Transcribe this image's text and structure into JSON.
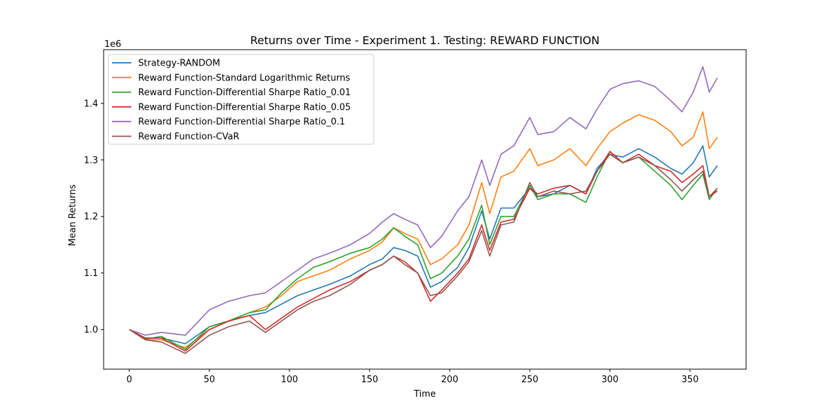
{
  "chart_data": {
    "type": "line",
    "title": "Returns over Time - Experiment 1. Testing: REWARD FUNCTION",
    "xlabel": "Time",
    "ylabel": "Mean Returns",
    "y_offset_label": "1e6",
    "xlim": [
      -16,
      385
    ],
    "ylim": [
      930000,
      1495000
    ],
    "xticks": [
      0,
      50,
      100,
      150,
      200,
      250,
      300,
      350
    ],
    "yticks": [
      1000000,
      1100000,
      1200000,
      1300000,
      1400000
    ],
    "ytick_labels": [
      "1.0",
      "1.1",
      "1.2",
      "1.3",
      "1.4"
    ],
    "grid": false,
    "legend_position": "top-left",
    "series": [
      {
        "name": "Strategy-RANDOM",
        "color": "#1f77b4",
        "points": [
          [
            0,
            1000000
          ],
          [
            10,
            985000
          ],
          [
            20,
            985000
          ],
          [
            35,
            975000
          ],
          [
            50,
            1005000
          ],
          [
            62,
            1015000
          ],
          [
            75,
            1025000
          ],
          [
            85,
            1030000
          ],
          [
            95,
            1045000
          ],
          [
            105,
            1060000
          ],
          [
            115,
            1070000
          ],
          [
            125,
            1080000
          ],
          [
            138,
            1095000
          ],
          [
            150,
            1115000
          ],
          [
            158,
            1125000
          ],
          [
            165,
            1145000
          ],
          [
            172,
            1140000
          ],
          [
            180,
            1130000
          ],
          [
            188,
            1075000
          ],
          [
            195,
            1085000
          ],
          [
            205,
            1110000
          ],
          [
            212,
            1145000
          ],
          [
            220,
            1210000
          ],
          [
            225,
            1160000
          ],
          [
            232,
            1215000
          ],
          [
            240,
            1215000
          ],
          [
            250,
            1250000
          ],
          [
            255,
            1235000
          ],
          [
            265,
            1240000
          ],
          [
            275,
            1255000
          ],
          [
            285,
            1240000
          ],
          [
            292,
            1285000
          ],
          [
            300,
            1310000
          ],
          [
            308,
            1305000
          ],
          [
            318,
            1320000
          ],
          [
            328,
            1305000
          ],
          [
            338,
            1285000
          ],
          [
            345,
            1275000
          ],
          [
            352,
            1295000
          ],
          [
            358,
            1325000
          ],
          [
            362,
            1270000
          ],
          [
            367,
            1290000
          ]
        ]
      },
      {
        "name": "Reward Function-Standard Logarithmic Returns",
        "color": "#ff7f0e",
        "points": [
          [
            0,
            1000000
          ],
          [
            10,
            982000
          ],
          [
            20,
            982000
          ],
          [
            35,
            968000
          ],
          [
            50,
            1000000
          ],
          [
            62,
            1015000
          ],
          [
            75,
            1030000
          ],
          [
            85,
            1040000
          ],
          [
            95,
            1060000
          ],
          [
            105,
            1085000
          ],
          [
            115,
            1095000
          ],
          [
            125,
            1105000
          ],
          [
            138,
            1125000
          ],
          [
            150,
            1140000
          ],
          [
            158,
            1155000
          ],
          [
            165,
            1180000
          ],
          [
            172,
            1170000
          ],
          [
            180,
            1160000
          ],
          [
            188,
            1115000
          ],
          [
            195,
            1125000
          ],
          [
            205,
            1150000
          ],
          [
            212,
            1185000
          ],
          [
            220,
            1260000
          ],
          [
            225,
            1205000
          ],
          [
            232,
            1270000
          ],
          [
            240,
            1280000
          ],
          [
            250,
            1320000
          ],
          [
            255,
            1290000
          ],
          [
            265,
            1300000
          ],
          [
            275,
            1320000
          ],
          [
            285,
            1290000
          ],
          [
            292,
            1320000
          ],
          [
            300,
            1350000
          ],
          [
            308,
            1365000
          ],
          [
            318,
            1380000
          ],
          [
            328,
            1370000
          ],
          [
            338,
            1350000
          ],
          [
            345,
            1325000
          ],
          [
            352,
            1340000
          ],
          [
            358,
            1385000
          ],
          [
            362,
            1320000
          ],
          [
            367,
            1340000
          ]
        ]
      },
      {
        "name": "Reward Function-Differential Sharpe Ratio_0.01",
        "color": "#2ca02c",
        "points": [
          [
            0,
            1000000
          ],
          [
            10,
            983000
          ],
          [
            20,
            988000
          ],
          [
            35,
            965000
          ],
          [
            50,
            1005000
          ],
          [
            62,
            1015000
          ],
          [
            75,
            1030000
          ],
          [
            85,
            1035000
          ],
          [
            95,
            1065000
          ],
          [
            105,
            1090000
          ],
          [
            115,
            1110000
          ],
          [
            125,
            1120000
          ],
          [
            138,
            1135000
          ],
          [
            150,
            1145000
          ],
          [
            158,
            1160000
          ],
          [
            165,
            1180000
          ],
          [
            172,
            1165000
          ],
          [
            180,
            1150000
          ],
          [
            188,
            1090000
          ],
          [
            195,
            1100000
          ],
          [
            205,
            1130000
          ],
          [
            212,
            1160000
          ],
          [
            220,
            1220000
          ],
          [
            225,
            1150000
          ],
          [
            232,
            1200000
          ],
          [
            240,
            1200000
          ],
          [
            250,
            1255000
          ],
          [
            255,
            1230000
          ],
          [
            265,
            1240000
          ],
          [
            275,
            1240000
          ],
          [
            285,
            1225000
          ],
          [
            292,
            1270000
          ],
          [
            300,
            1315000
          ],
          [
            308,
            1295000
          ],
          [
            318,
            1305000
          ],
          [
            328,
            1280000
          ],
          [
            338,
            1255000
          ],
          [
            345,
            1230000
          ],
          [
            352,
            1255000
          ],
          [
            358,
            1275000
          ],
          [
            362,
            1230000
          ],
          [
            367,
            1250000
          ]
        ]
      },
      {
        "name": "Reward Function-Differential Sharpe Ratio_0.05",
        "color": "#d62728",
        "points": [
          [
            0,
            1000000
          ],
          [
            10,
            985000
          ],
          [
            20,
            985000
          ],
          [
            35,
            962000
          ],
          [
            50,
            1000000
          ],
          [
            62,
            1015000
          ],
          [
            75,
            1025000
          ],
          [
            85,
            1000000
          ],
          [
            95,
            1020000
          ],
          [
            105,
            1040000
          ],
          [
            115,
            1055000
          ],
          [
            125,
            1070000
          ],
          [
            138,
            1085000
          ],
          [
            150,
            1105000
          ],
          [
            158,
            1115000
          ],
          [
            165,
            1130000
          ],
          [
            172,
            1120000
          ],
          [
            180,
            1100000
          ],
          [
            188,
            1050000
          ],
          [
            195,
            1070000
          ],
          [
            205,
            1100000
          ],
          [
            212,
            1125000
          ],
          [
            220,
            1185000
          ],
          [
            225,
            1140000
          ],
          [
            232,
            1190000
          ],
          [
            240,
            1195000
          ],
          [
            250,
            1250000
          ],
          [
            255,
            1240000
          ],
          [
            265,
            1250000
          ],
          [
            275,
            1255000
          ],
          [
            285,
            1240000
          ],
          [
            292,
            1280000
          ],
          [
            300,
            1315000
          ],
          [
            308,
            1295000
          ],
          [
            318,
            1310000
          ],
          [
            328,
            1290000
          ],
          [
            338,
            1280000
          ],
          [
            345,
            1260000
          ],
          [
            352,
            1275000
          ],
          [
            358,
            1290000
          ],
          [
            362,
            1235000
          ],
          [
            367,
            1245000
          ]
        ]
      },
      {
        "name": "Reward Function-Differential Sharpe Ratio_0.1",
        "color": "#9467bd",
        "points": [
          [
            0,
            1000000
          ],
          [
            10,
            990000
          ],
          [
            20,
            995000
          ],
          [
            35,
            990000
          ],
          [
            50,
            1035000
          ],
          [
            62,
            1050000
          ],
          [
            75,
            1060000
          ],
          [
            85,
            1065000
          ],
          [
            95,
            1085000
          ],
          [
            105,
            1105000
          ],
          [
            115,
            1125000
          ],
          [
            125,
            1135000
          ],
          [
            138,
            1150000
          ],
          [
            150,
            1170000
          ],
          [
            158,
            1190000
          ],
          [
            165,
            1205000
          ],
          [
            172,
            1195000
          ],
          [
            180,
            1185000
          ],
          [
            188,
            1145000
          ],
          [
            195,
            1165000
          ],
          [
            205,
            1210000
          ],
          [
            212,
            1235000
          ],
          [
            220,
            1300000
          ],
          [
            225,
            1255000
          ],
          [
            232,
            1310000
          ],
          [
            240,
            1325000
          ],
          [
            250,
            1375000
          ],
          [
            255,
            1345000
          ],
          [
            265,
            1350000
          ],
          [
            275,
            1375000
          ],
          [
            285,
            1355000
          ],
          [
            292,
            1390000
          ],
          [
            300,
            1425000
          ],
          [
            308,
            1435000
          ],
          [
            318,
            1440000
          ],
          [
            328,
            1430000
          ],
          [
            338,
            1405000
          ],
          [
            345,
            1385000
          ],
          [
            352,
            1420000
          ],
          [
            358,
            1465000
          ],
          [
            362,
            1420000
          ],
          [
            367,
            1445000
          ]
        ]
      },
      {
        "name": "Reward Function-CVaR",
        "color": "#8c564b",
        "points": [
          [
            0,
            1000000
          ],
          [
            10,
            982000
          ],
          [
            20,
            978000
          ],
          [
            35,
            958000
          ],
          [
            50,
            990000
          ],
          [
            62,
            1005000
          ],
          [
            75,
            1015000
          ],
          [
            85,
            995000
          ],
          [
            95,
            1015000
          ],
          [
            105,
            1035000
          ],
          [
            115,
            1050000
          ],
          [
            125,
            1060000
          ],
          [
            138,
            1080000
          ],
          [
            150,
            1105000
          ],
          [
            158,
            1115000
          ],
          [
            165,
            1130000
          ],
          [
            172,
            1115000
          ],
          [
            180,
            1100000
          ],
          [
            188,
            1060000
          ],
          [
            195,
            1065000
          ],
          [
            205,
            1095000
          ],
          [
            212,
            1120000
          ],
          [
            220,
            1175000
          ],
          [
            225,
            1130000
          ],
          [
            232,
            1185000
          ],
          [
            240,
            1190000
          ],
          [
            250,
            1260000
          ],
          [
            255,
            1235000
          ],
          [
            265,
            1245000
          ],
          [
            275,
            1240000
          ],
          [
            285,
            1245000
          ],
          [
            292,
            1280000
          ],
          [
            300,
            1310000
          ],
          [
            308,
            1295000
          ],
          [
            318,
            1305000
          ],
          [
            328,
            1290000
          ],
          [
            338,
            1265000
          ],
          [
            345,
            1245000
          ],
          [
            352,
            1265000
          ],
          [
            358,
            1280000
          ],
          [
            362,
            1235000
          ],
          [
            367,
            1250000
          ]
        ]
      }
    ]
  }
}
